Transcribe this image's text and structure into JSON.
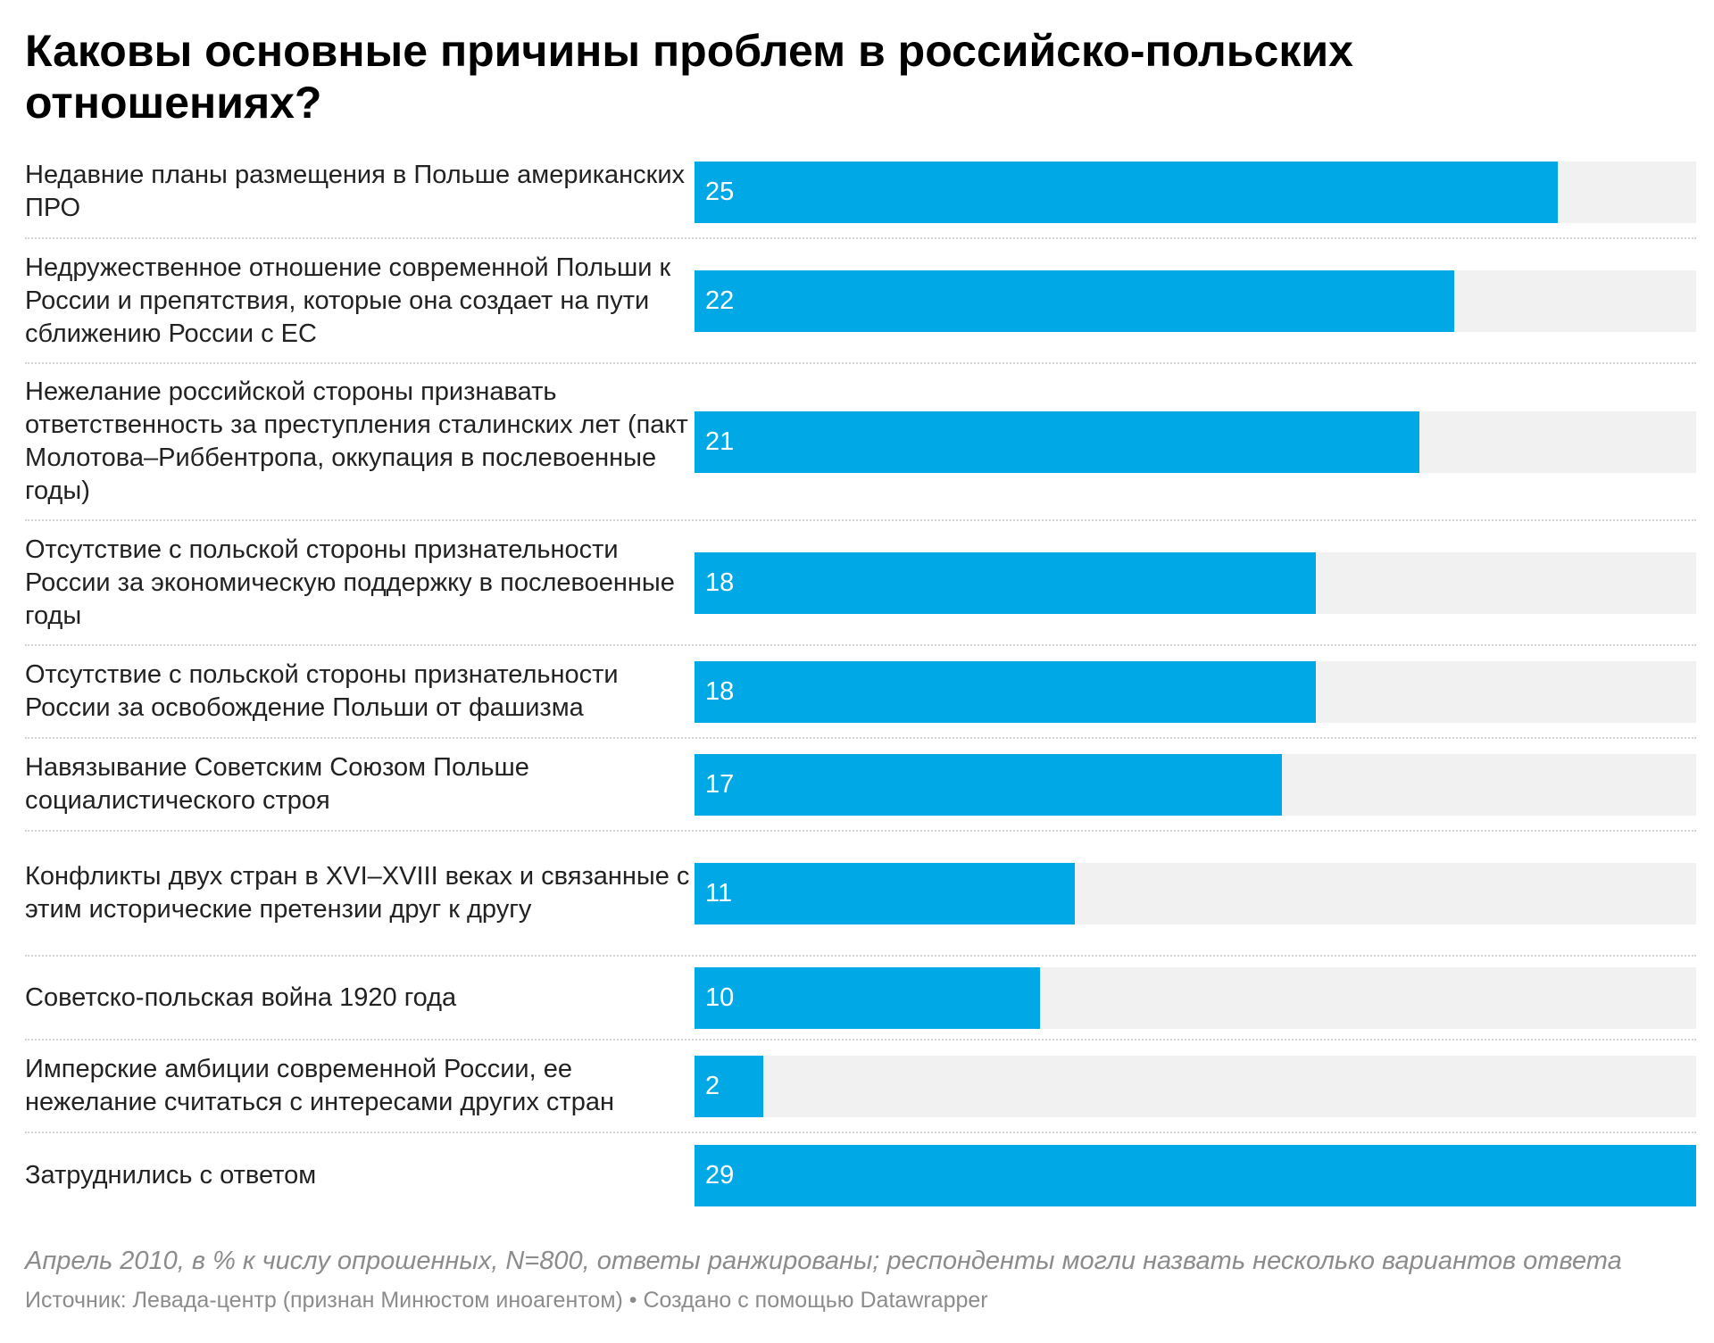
{
  "header": {
    "title": "Каковы основные причины проблем в российско-польских отношениях?"
  },
  "chart_data": {
    "type": "bar",
    "title": "Каковы основные причины проблем в российско-польских отношениях?",
    "xlim": [
      0,
      29
    ],
    "colors": {
      "bar": "#00a9e6",
      "track": "#f1f1f1"
    },
    "categories": [
      "Недавние планы размещения в Польше американских ПРО",
      "Недружественное отношение современной Польши к России и препятствия, которые она создает на пути сближению России с ЕС",
      "Нежелание российской стороны признавать ответственность за преступления сталинских лет (пакт Молотова–Риббентропа, оккупация в послевоенные годы)",
      "Отсутствие с польской стороны признательности России за экономическую поддержку в послевоенные годы",
      "Отсутствие с польской стороны признательности России за освобождение Польши от фашизма",
      "Навязывание Советским Союзом Польше социалистического строя",
      "Конфликты двух стран в XVI–XVIII веках и связанные с этим исторические претензии друг к другу",
      "Советско-польская война 1920 года",
      "Имперские амбиции современной России, ее нежелание считаться с интересами других стран",
      "Затруднились с ответом"
    ],
    "values": [
      25,
      22,
      21,
      18,
      18,
      17,
      11,
      10,
      2,
      29
    ]
  },
  "footer": {
    "note": "Апрель 2010, в % к числу опрошенных, N=800, ответы ранжированы; респонденты могли назвать несколько вариантов ответа",
    "source": "Источник: Левада-центр (признан Минюстом иноагентом) • Создано с помощью Datawrapper"
  }
}
